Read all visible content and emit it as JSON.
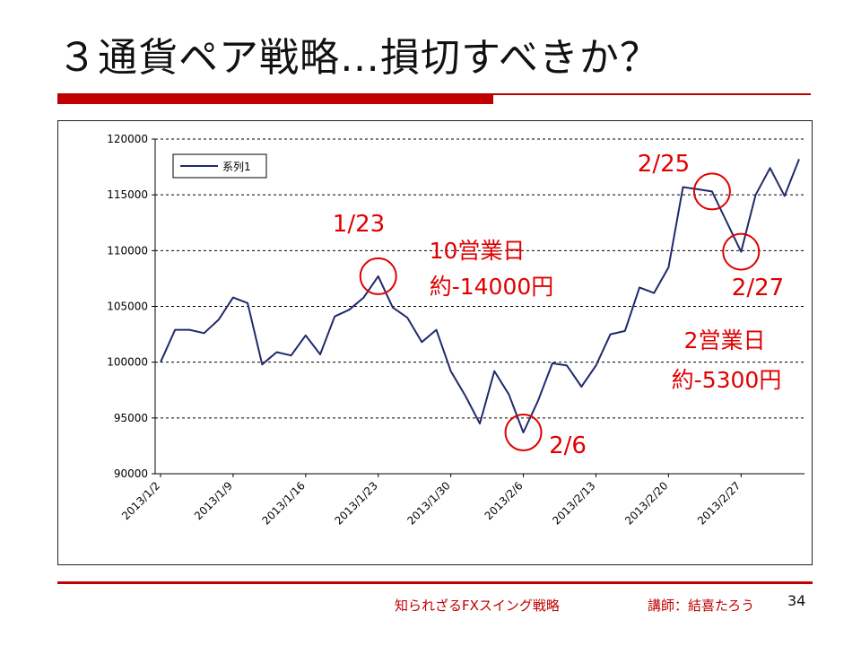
{
  "slide": {
    "title": "３通貨ペア戦略…損切すべきか？",
    "footer_left": "知られざるFXスイング戦略",
    "footer_right": "講師：結喜たろう",
    "page_number": "34",
    "accent_color": "#c00000"
  },
  "chart_data": {
    "type": "line",
    "title": "",
    "xlabel": "",
    "ylabel": "",
    "ylim": [
      90000,
      120000
    ],
    "yticks": [
      90000,
      95000,
      100000,
      105000,
      110000,
      115000,
      120000
    ],
    "ytick_labels": [
      "90000",
      "95000",
      "100000",
      "105000",
      "110000",
      "115000",
      "120000"
    ],
    "xtick_labels": [
      "2013/1/2",
      "2013/1/9",
      "2013/1/16",
      "2013/1/23",
      "2013/1/30",
      "2013/2/6",
      "2013/2/13",
      "2013/2/20",
      "2013/2/27"
    ],
    "grid": "horizontal-dashed",
    "legend": {
      "position": "top-left",
      "entries": [
        "系列1"
      ]
    },
    "line_color": "#1f2a6b",
    "annotation_color": "#e00000",
    "series": [
      {
        "name": "系列1",
        "x": [
          "2013/1/2",
          "2013/1/3",
          "2013/1/4",
          "2013/1/7",
          "2013/1/8",
          "2013/1/9",
          "2013/1/10",
          "2013/1/11",
          "2013/1/14",
          "2013/1/15",
          "2013/1/16",
          "2013/1/17",
          "2013/1/18",
          "2013/1/21",
          "2013/1/22",
          "2013/1/23",
          "2013/1/24",
          "2013/1/25",
          "2013/1/28",
          "2013/1/29",
          "2013/1/30",
          "2013/1/31",
          "2013/2/1",
          "2013/2/4",
          "2013/2/5",
          "2013/2/6",
          "2013/2/7",
          "2013/2/8",
          "2013/2/11",
          "2013/2/12",
          "2013/2/13",
          "2013/2/14",
          "2013/2/15",
          "2013/2/18",
          "2013/2/19",
          "2013/2/20",
          "2013/2/21",
          "2013/2/22",
          "2013/2/25",
          "2013/2/26",
          "2013/2/27",
          "2013/2/28",
          "2013/3/1",
          "2013/3/4",
          "2013/3/5"
        ],
        "values": [
          100000,
          102900,
          102900,
          102600,
          103800,
          105800,
          105300,
          99800,
          100900,
          100600,
          102400,
          100700,
          104100,
          104700,
          105800,
          107700,
          104900,
          104000,
          101800,
          102900,
          99200,
          97000,
          94500,
          99200,
          97100,
          93700,
          96500,
          99900,
          99700,
          97800,
          99700,
          102500,
          102800,
          106700,
          106200,
          108500,
          115700,
          115500,
          115300,
          112600,
          109900,
          115000,
          117400,
          114900,
          118200
        ]
      }
    ],
    "annotations": [
      {
        "label": "1/23",
        "circle_x": "2013/1/23",
        "circle_y": 107700
      },
      {
        "label": "10営業日",
        "note": true
      },
      {
        "label": "約-14000円",
        "note": true
      },
      {
        "label": "2/6",
        "circle_x": "2013/2/6",
        "circle_y": 93700
      },
      {
        "label": "2/25",
        "circle_x": "2013/2/25",
        "circle_y": 115300
      },
      {
        "label": "2/27",
        "circle_x": "2013/2/27",
        "circle_y": 109900
      },
      {
        "label": "2営業日",
        "note": true
      },
      {
        "label": "約-5300円",
        "note": true
      }
    ]
  }
}
